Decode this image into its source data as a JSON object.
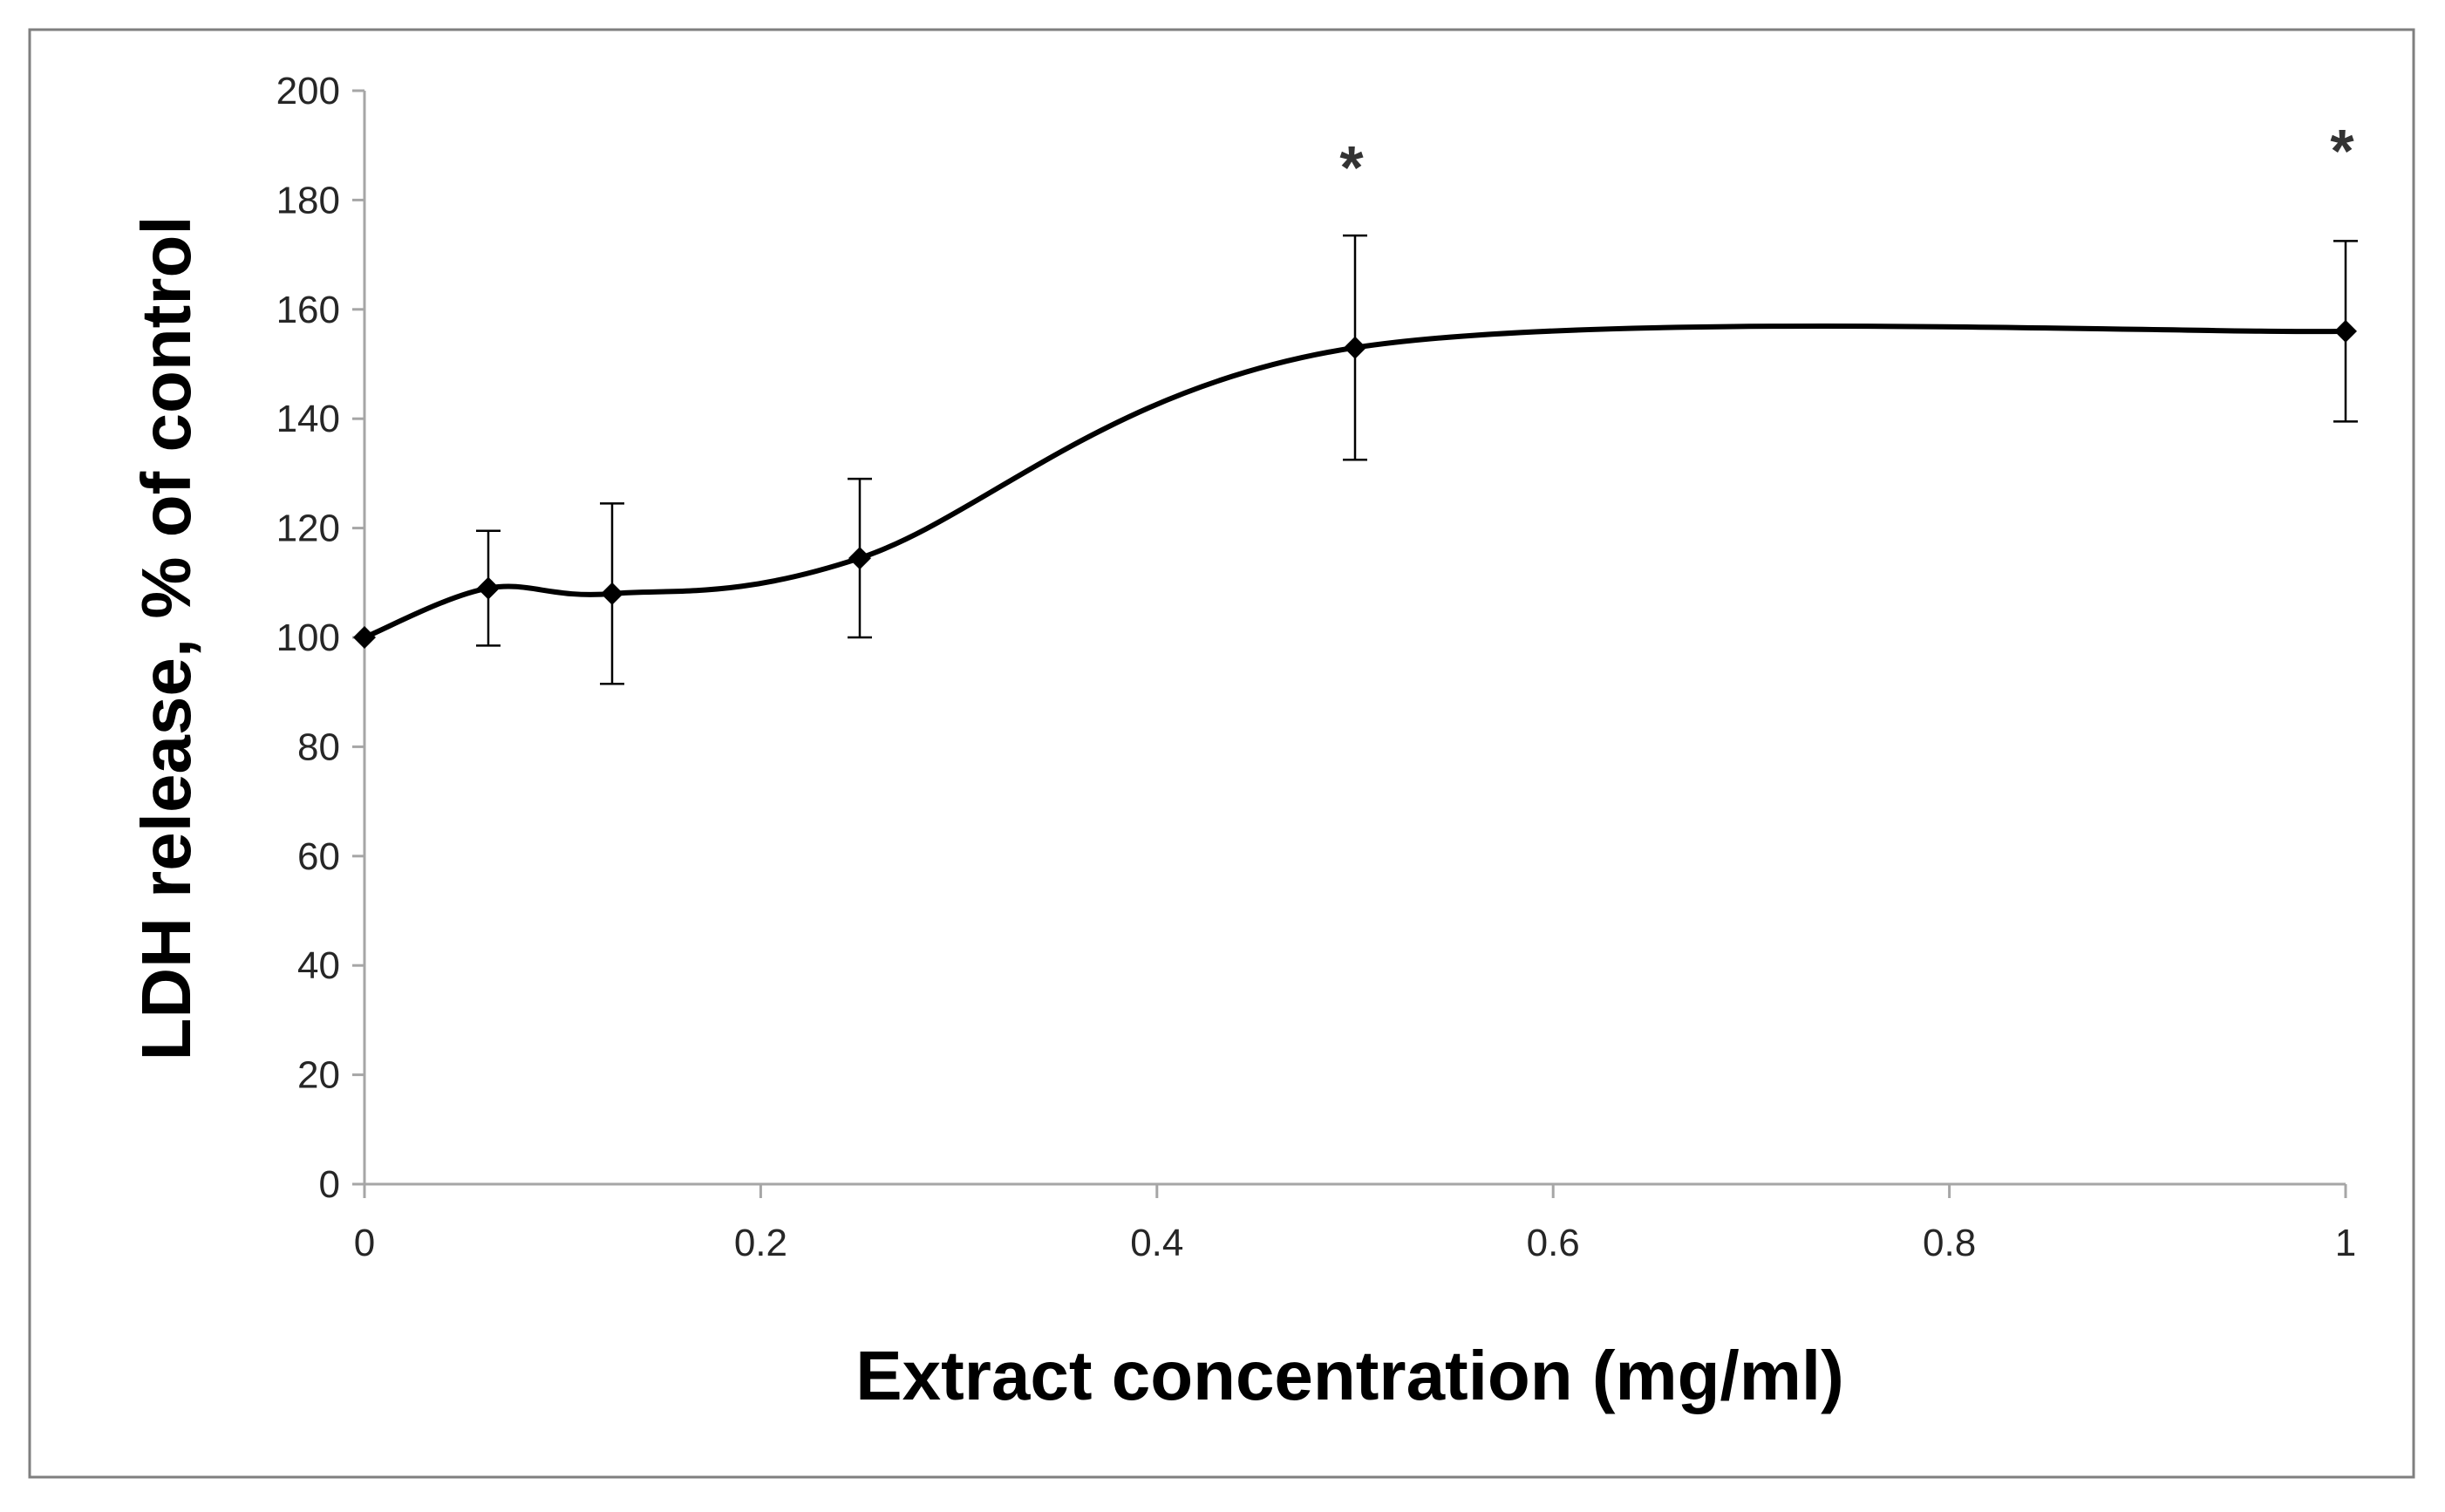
{
  "chart_data": {
    "type": "line",
    "title": "",
    "xlabel": "Extract concentration (mg/ml)",
    "ylabel": "LDH release, % of control",
    "xlim": [
      0,
      1
    ],
    "ylim": [
      0,
      200
    ],
    "xticks": [
      0,
      0.2,
      0.4,
      0.6,
      0.8,
      1
    ],
    "xtick_labels": [
      "0",
      "0.2",
      "0.4",
      "0.6",
      "0.8",
      "1"
    ],
    "yticks": [
      0,
      20,
      40,
      60,
      80,
      100,
      120,
      140,
      160,
      180,
      200
    ],
    "ytick_labels": [
      "0",
      "20",
      "40",
      "60",
      "80",
      "100",
      "120",
      "140",
      "160",
      "180",
      "200"
    ],
    "grid": false,
    "legend": "none",
    "smooth": true,
    "colors": {
      "line": "#000000",
      "axis": "#a6a6a6",
      "frame": "#7f7f7f"
    },
    "series": [
      {
        "name": "LDH release",
        "marker": "diamond",
        "x": [
          0,
          0.0625,
          0.125,
          0.25,
          0.5,
          1
        ],
        "y": [
          100,
          109,
          108,
          114.5,
          153,
          156
        ],
        "error": [
          0,
          10.5,
          16.5,
          14.5,
          20.5,
          16.5
        ],
        "error_lower": [
          false,
          true,
          true,
          true,
          true,
          true
        ]
      }
    ],
    "annotations": [
      {
        "text": "*",
        "x": 0.5,
        "y": 186
      },
      {
        "text": "*",
        "x": 1,
        "y": 189
      }
    ]
  }
}
